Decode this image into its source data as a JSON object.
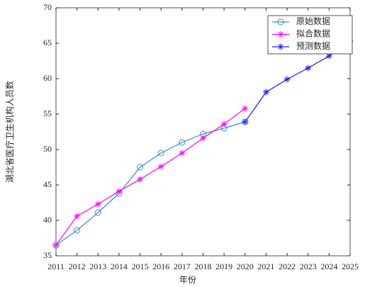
{
  "chart_data": {
    "type": "line",
    "x_label": "年份",
    "y_label": "湖北省医疗卫生机构人员数",
    "xlim": [
      2011,
      2025
    ],
    "ylim": [
      35,
      70
    ],
    "xticks": [
      2011,
      2012,
      2013,
      2014,
      2015,
      2016,
      2017,
      2018,
      2019,
      2020,
      2021,
      2022,
      2023,
      2024,
      2025
    ],
    "yticks": [
      35,
      40,
      45,
      50,
      55,
      60,
      65,
      70
    ],
    "grid": false,
    "legend": "top-right",
    "series": [
      {
        "name": "原始数据",
        "color": "#3a8fc8",
        "marker": "circle",
        "x": [
          2011,
          2012,
          2013,
          2014,
          2015,
          2016,
          2017,
          2018,
          2019,
          2020
        ],
        "values": [
          36.5,
          38.6,
          41.1,
          43.8,
          47.5,
          49.5,
          51.0,
          52.2,
          53.0,
          53.9
        ]
      },
      {
        "name": "拟合数据",
        "color": "#ff00ff",
        "marker": "asterisk",
        "x": [
          2011,
          2012,
          2013,
          2014,
          2015,
          2016,
          2017,
          2018,
          2019,
          2020
        ],
        "values": [
          36.5,
          40.6,
          42.3,
          44.1,
          45.8,
          47.6,
          49.5,
          51.6,
          53.6,
          55.8
        ]
      },
      {
        "name": "预测数据",
        "color": "#1a1aff",
        "marker": "asterisk",
        "x": [
          2020,
          2021,
          2022,
          2023,
          2024,
          2025
        ],
        "values": [
          53.9,
          58.1,
          59.9,
          61.5,
          63.2,
          65.3
        ]
      }
    ]
  }
}
